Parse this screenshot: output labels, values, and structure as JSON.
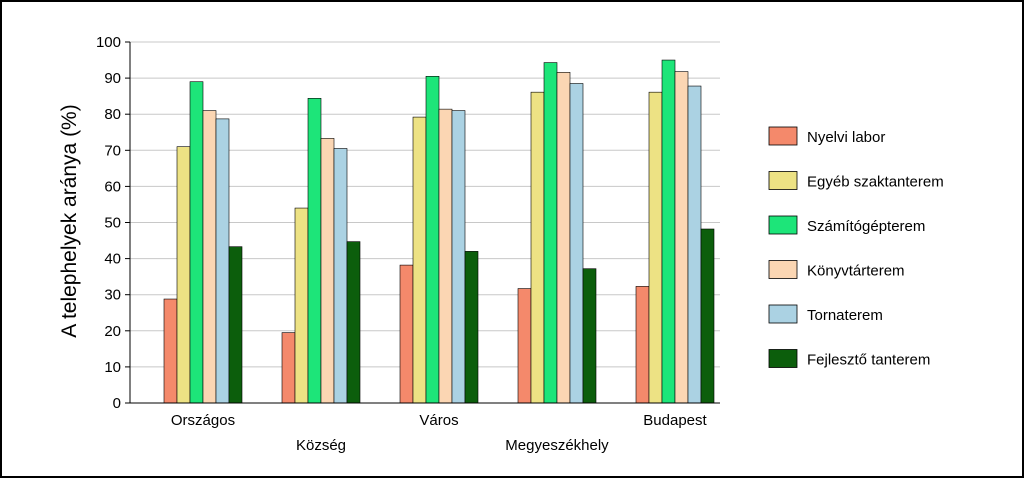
{
  "chart_data": {
    "type": "bar",
    "ylabel": "A telephelyek aránya (%)",
    "xlabel": "",
    "ylim": [
      0,
      100
    ],
    "yticks": [
      0,
      10,
      20,
      30,
      40,
      50,
      60,
      70,
      80,
      90,
      100
    ],
    "grid": true,
    "legend_position": "right",
    "categories": [
      "Országos",
      "Község",
      "Város",
      "Megyeszékhely",
      "Budapest"
    ],
    "series": [
      {
        "name": "Nyelvi labor",
        "color": "#F4896B",
        "values": [
          28.8,
          19.5,
          38.2,
          31.7,
          32.3
        ]
      },
      {
        "name": "Egyéb szaktanterem",
        "color": "#EDE284",
        "values": [
          71.0,
          54.0,
          79.2,
          86.1,
          86.1
        ]
      },
      {
        "name": "Számítógépterem",
        "color": "#1DE579",
        "values": [
          89.0,
          84.4,
          90.5,
          94.3,
          95.0
        ]
      },
      {
        "name": "Könyvtárterem",
        "color": "#FBD6B3",
        "values": [
          81.0,
          73.3,
          81.4,
          91.6,
          91.8
        ]
      },
      {
        "name": "Tornaterem",
        "color": "#ABD2E3",
        "values": [
          78.7,
          70.5,
          81.0,
          88.5,
          87.8
        ]
      },
      {
        "name": "Fejlesztő tanterem",
        "color": "#0C5E0C",
        "values": [
          43.3,
          44.7,
          42.0,
          37.2,
          48.2
        ]
      }
    ]
  }
}
